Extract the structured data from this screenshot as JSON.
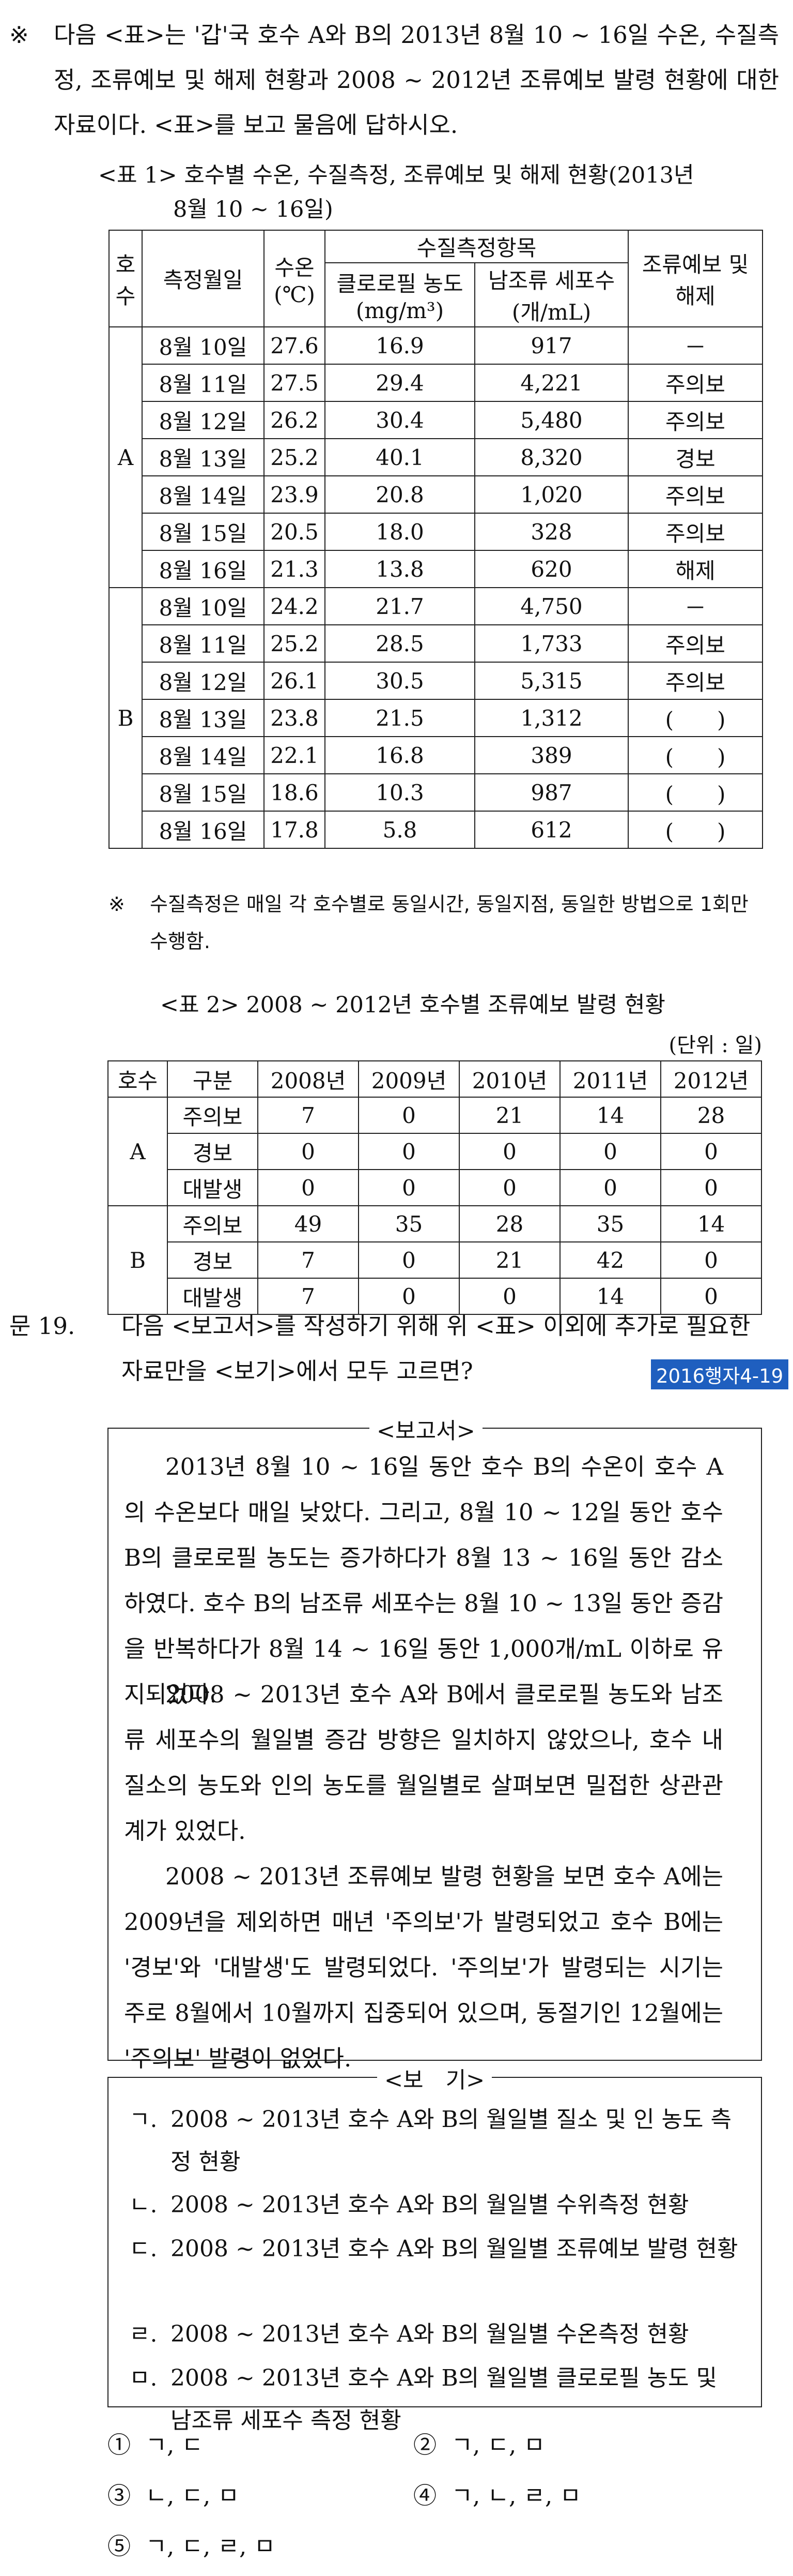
{
  "intro": {
    "mark": "※",
    "text": "다음 <표>는 '갑'국 호수 A와 B의 2013년 8월 10 ~ 16일 수온, 수질측정, 조류예보 및 해제 현황과 2008 ~ 2012년 조류예보 발령 현황에 대한 자료이다. <표>를 보고 물음에 답하시오."
  },
  "table1": {
    "caption_line1": "<표 1> 호수별 수온, 수질측정, 조류예보 및 해제 현황(2013년",
    "caption_line2": "8월 10 ~ 16일)",
    "headers": {
      "lake": "호수",
      "date": "측정월일",
      "temp": "수온(℃)",
      "quality_group": "수질측정항목",
      "chl": "클로로필 농도(mg/m³)",
      "algae": "남조류 세포수(개/mL)",
      "alert": "조류예보 및 해제"
    },
    "groups": [
      {
        "lake": "A",
        "rows": [
          {
            "date": "8월 10일",
            "temp": "27.6",
            "chl": "16.9",
            "algae": "917",
            "alert": "－"
          },
          {
            "date": "8월 11일",
            "temp": "27.5",
            "chl": "29.4",
            "algae": "4,221",
            "alert": "주의보"
          },
          {
            "date": "8월 12일",
            "temp": "26.2",
            "chl": "30.4",
            "algae": "5,480",
            "alert": "주의보"
          },
          {
            "date": "8월 13일",
            "temp": "25.2",
            "chl": "40.1",
            "algae": "8,320",
            "alert": "경보"
          },
          {
            "date": "8월 14일",
            "temp": "23.9",
            "chl": "20.8",
            "algae": "1,020",
            "alert": "주의보"
          },
          {
            "date": "8월 15일",
            "temp": "20.5",
            "chl": "18.0",
            "algae": "328",
            "alert": "주의보"
          },
          {
            "date": "8월 16일",
            "temp": "21.3",
            "chl": "13.8",
            "algae": "620",
            "alert": "해제"
          }
        ]
      },
      {
        "lake": "B",
        "rows": [
          {
            "date": "8월 10일",
            "temp": "24.2",
            "chl": "21.7",
            "algae": "4,750",
            "alert": "－"
          },
          {
            "date": "8월 11일",
            "temp": "25.2",
            "chl": "28.5",
            "algae": "1,733",
            "alert": "주의보"
          },
          {
            "date": "8월 12일",
            "temp": "26.1",
            "chl": "30.5",
            "algae": "5,315",
            "alert": "주의보"
          },
          {
            "date": "8월 13일",
            "temp": "23.8",
            "chl": "21.5",
            "algae": "1,312",
            "alert": "(　　)"
          },
          {
            "date": "8월 14일",
            "temp": "22.1",
            "chl": "16.8",
            "algae": "389",
            "alert": "(　　)"
          },
          {
            "date": "8월 15일",
            "temp": "18.6",
            "chl": "10.3",
            "algae": "987",
            "alert": "(　　)"
          },
          {
            "date": "8월 16일",
            "temp": "17.8",
            "chl": "5.8",
            "algae": "612",
            "alert": "(　　)"
          }
        ]
      }
    ]
  },
  "note": {
    "mark": "※",
    "text": "수질측정은 매일 각 호수별로 동일시간, 동일지점, 동일한 방법으로 1회만 수행함."
  },
  "table2": {
    "caption": "<표 2> 2008 ~ 2012년 호수별 조류예보 발령 현황",
    "unit": "(단위 : 일)",
    "headers": [
      "호수",
      "구분",
      "2008년",
      "2009년",
      "2010년",
      "2011년",
      "2012년"
    ],
    "groups": [
      {
        "lake": "A",
        "rows": [
          {
            "type": "주의보",
            "values": [
              "7",
              "0",
              "21",
              "14",
              "28"
            ]
          },
          {
            "type": "경보",
            "values": [
              "0",
              "0",
              "0",
              "0",
              "0"
            ]
          },
          {
            "type": "대발생",
            "values": [
              "0",
              "0",
              "0",
              "0",
              "0"
            ]
          }
        ]
      },
      {
        "lake": "B",
        "rows": [
          {
            "type": "주의보",
            "values": [
              "49",
              "35",
              "28",
              "35",
              "14"
            ]
          },
          {
            "type": "경보",
            "values": [
              "7",
              "0",
              "21",
              "42",
              "0"
            ]
          },
          {
            "type": "대발생",
            "values": [
              "7",
              "0",
              "0",
              "14",
              "0"
            ]
          }
        ]
      }
    ]
  },
  "question": {
    "number": "문 19.",
    "text": "다음 <보고서>를 작성하기 위해 위 <표> 이외에 추가로 필요한 자료만을 <보기>에서 모두 고르면?",
    "tag": "2016행자4-19"
  },
  "report": {
    "title": "<보고서>",
    "paragraphs": [
      "2013년 8월 10 ~ 16일 동안 호수 B의 수온이 호수 A의 수온보다 매일 낮았다. 그리고, 8월 10 ~ 12일 동안 호수 B의 클로로필 농도는 증가하다가 8월 13 ~ 16일 동안 감소하였다. 호수 B의 남조류 세포수는 8월 10 ~ 13일 동안 증감을 반복하다가 8월 14 ~ 16일 동안 1,000개/mL 이하로 유지되었다.",
      "2008 ~ 2013년 호수 A와 B에서 클로로필 농도와 남조류 세포수의 월일별 증감 방향은 일치하지 않았으나, 호수 내 질소의 농도와 인의 농도를 월일별로 살펴보면 밀접한 상관관계가 있었다.",
      "2008 ~ 2013년 조류예보 발령 현황을 보면 호수 A에는 2009년을 제외하면 매년 '주의보'가 발령되었고 호수 B에는 '경보'와 '대발생'도 발령되었다. '주의보'가 발령되는 시기는 주로 8월에서 10월까지 집중되어 있으며, 동절기인 12월에는 '주의보' 발령이 없었다."
    ]
  },
  "bogi": {
    "title": "<보　기>",
    "items": [
      {
        "key": "ㄱ.",
        "text": "2008 ~ 2013년 호수 A와 B의 월일별 질소 및 인 농도 측정 현황"
      },
      {
        "key": "ㄴ.",
        "text": "2008 ~ 2013년 호수 A와 B의 월일별 수위측정 현황"
      },
      {
        "key": "ㄷ.",
        "text": "2008 ~ 2013년 호수 A와 B의 월일별 조류예보 발령 현황"
      },
      {
        "key": "ㄹ.",
        "text": "2008 ~ 2013년 호수 A와 B의 월일별 수온측정 현황"
      },
      {
        "key": "ㅁ.",
        "text": "2008 ~ 2013년 호수 A와 B의 월일별 클로로필 농도 및 남조류 세포수 측정 현황"
      }
    ]
  },
  "choices": [
    {
      "num": "①",
      "text": "ㄱ, ㄷ"
    },
    {
      "num": "②",
      "text": "ㄱ, ㄷ, ㅁ"
    },
    {
      "num": "③",
      "text": "ㄴ, ㄷ, ㅁ"
    },
    {
      "num": "④",
      "text": "ㄱ, ㄴ, ㄹ, ㅁ"
    },
    {
      "num": "⑤",
      "text": "ㄱ, ㄷ, ㄹ, ㅁ"
    }
  ]
}
